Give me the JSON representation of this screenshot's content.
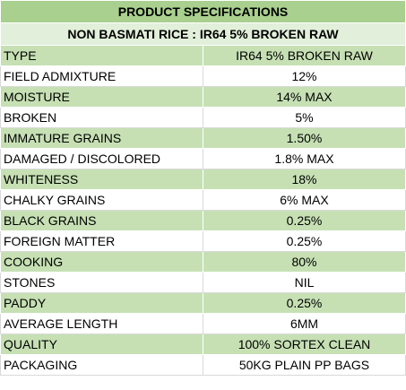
{
  "title": "PRODUCT SPECIFICATIONS",
  "subtitle": "NON BASMATI RICE : IR64 5% BROKEN RAW",
  "colors": {
    "header": "#a9d08e",
    "subheader": "#e2efda",
    "shaded_row": "#c6e0b4",
    "plain_row": "#ffffff"
  },
  "rows": [
    {
      "parameter": "TYPE",
      "value": "IR64 5% BROKEN RAW"
    },
    {
      "parameter": "FIELD ADMIXTURE",
      "value": "12%"
    },
    {
      "parameter": "MOISTURE",
      "value": "14% MAX"
    },
    {
      "parameter": "BROKEN",
      "value": "5%"
    },
    {
      "parameter": "IMMATURE GRAINS",
      "value": "1.50%"
    },
    {
      "parameter": "DAMAGED / DISCOLORED",
      "value": "1.8% MAX"
    },
    {
      "parameter": "WHITENESS",
      "value": "18%"
    },
    {
      "parameter": "CHALKY GRAINS",
      "value": "6% MAX"
    },
    {
      "parameter": "BLACK GRAINS",
      "value": "0.25%"
    },
    {
      "parameter": "FOREIGN MATTER",
      "value": "0.25%"
    },
    {
      "parameter": "COOKING",
      "value": "80%"
    },
    {
      "parameter": "STONES",
      "value": "NIL"
    },
    {
      "parameter": "PADDY",
      "value": "0.25%"
    },
    {
      "parameter": "AVERAGE LENGTH",
      "value": "6MM"
    },
    {
      "parameter": "QUALITY",
      "value": "100% SORTEX CLEAN"
    },
    {
      "parameter": "PACKAGING",
      "value": "50KG PLAIN PP BAGS"
    }
  ]
}
